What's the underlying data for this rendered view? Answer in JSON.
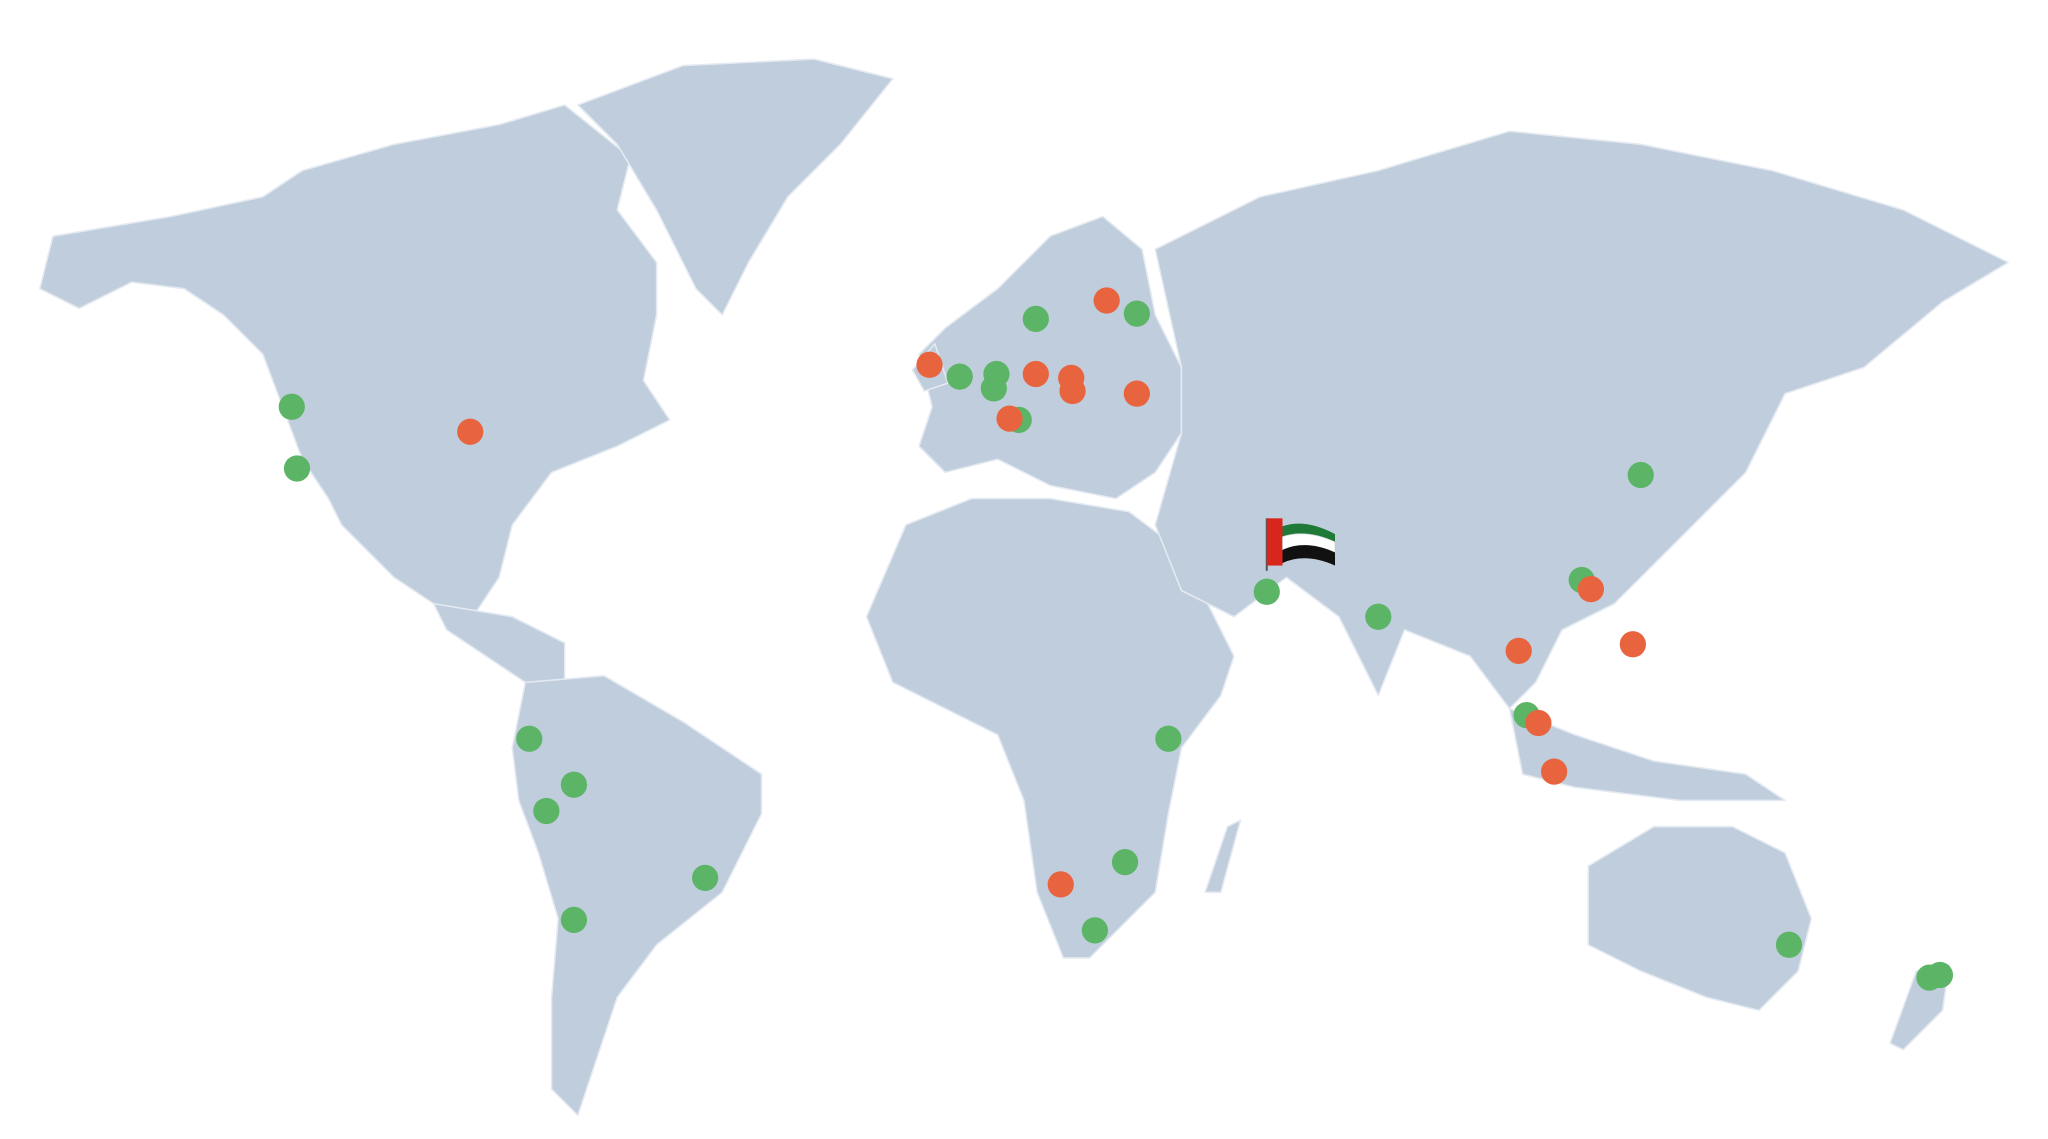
{
  "map": {
    "land_color": "#c0cddc",
    "border_color": "#e4eaf1",
    "marker_colors": [
      "#5cb566",
      "#e8643f"
    ]
  }
}
